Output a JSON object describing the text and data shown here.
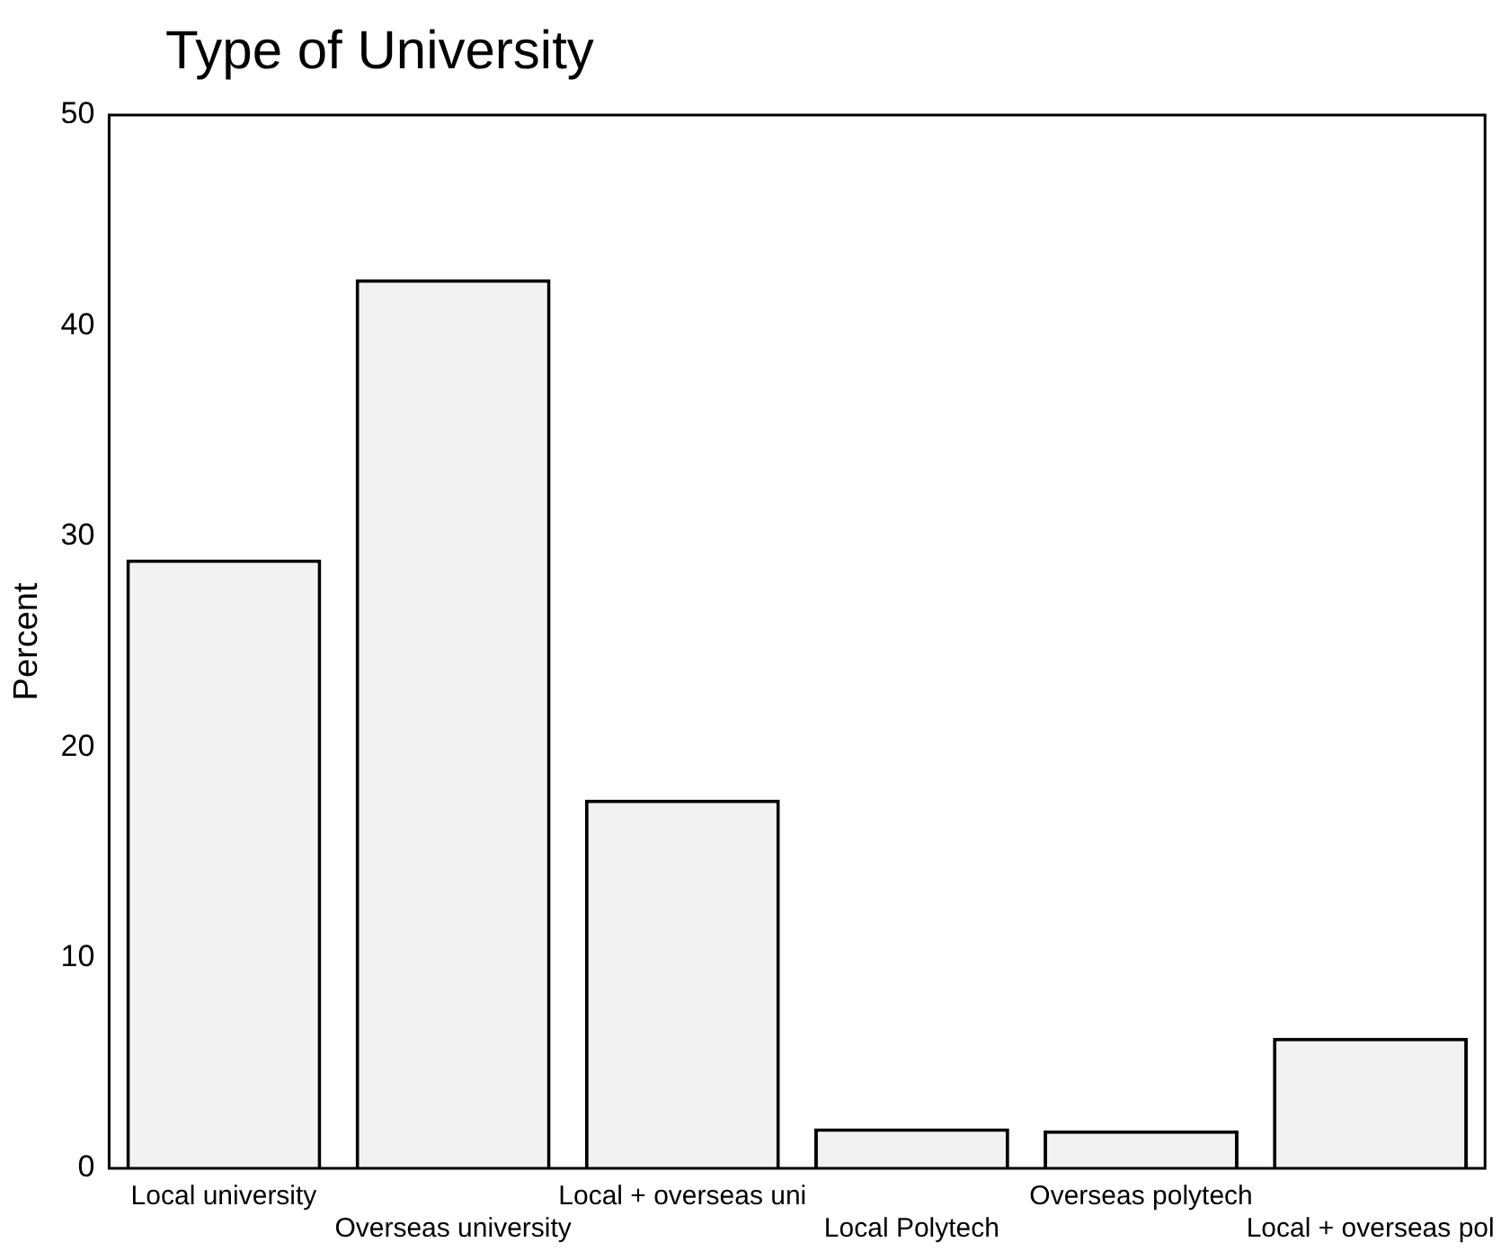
{
  "chart_data": {
    "type": "bar",
    "title": "Type of University",
    "ylabel": "Percent",
    "categories": [
      "Local university",
      "Overseas university",
      "Local + overseas uni",
      "Local Polytech",
      "Overseas polytech",
      "Local + overseas pol"
    ],
    "values": [
      28.9,
      42.2,
      17.5,
      1.9,
      1.8,
      6.2
    ],
    "color": "#f2f2f2",
    "ylim": [
      0,
      50
    ],
    "yticks": [
      0,
      10,
      20,
      30,
      40,
      50
    ],
    "grid": false,
    "legend": false
  }
}
